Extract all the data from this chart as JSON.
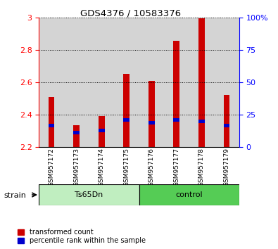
{
  "title": "GDS4376 / 10583376",
  "samples": [
    "GSM957172",
    "GSM957173",
    "GSM957174",
    "GSM957175",
    "GSM957176",
    "GSM957177",
    "GSM957178",
    "GSM957179"
  ],
  "red_values": [
    2.51,
    2.335,
    2.39,
    2.65,
    2.61,
    2.855,
    2.995,
    2.52
  ],
  "blue_values": [
    2.33,
    2.29,
    2.3,
    2.365,
    2.35,
    2.365,
    2.36,
    2.33
  ],
  "ylim_left": [
    2.2,
    3.0
  ],
  "ylim_right": [
    0,
    100
  ],
  "yticks_left": [
    2.2,
    2.4,
    2.6,
    2.8,
    3.0
  ],
  "ytick_labels_left": [
    "2.2",
    "2.4",
    "2.6",
    "2.8",
    "3"
  ],
  "yticks_right": [
    0,
    25,
    50,
    75,
    100
  ],
  "ytick_labels_right": [
    "0",
    "25",
    "50",
    "75",
    "100%"
  ],
  "groups": [
    {
      "label": "Ts65Dn",
      "start": 0,
      "end": 3,
      "color": "#c0eec0"
    },
    {
      "label": "control",
      "start": 4,
      "end": 7,
      "color": "#55cc55"
    }
  ],
  "red_color": "#cc0000",
  "blue_color": "#0000cc",
  "bar_bg_color": "#d4d4d4",
  "left_axis_color": "red",
  "right_axis_color": "blue",
  "legend_red_label": "transformed count",
  "legend_blue_label": "percentile rank within the sample",
  "strain_label": "strain",
  "blue_bar_height": 0.022,
  "bar_width": 0.45
}
